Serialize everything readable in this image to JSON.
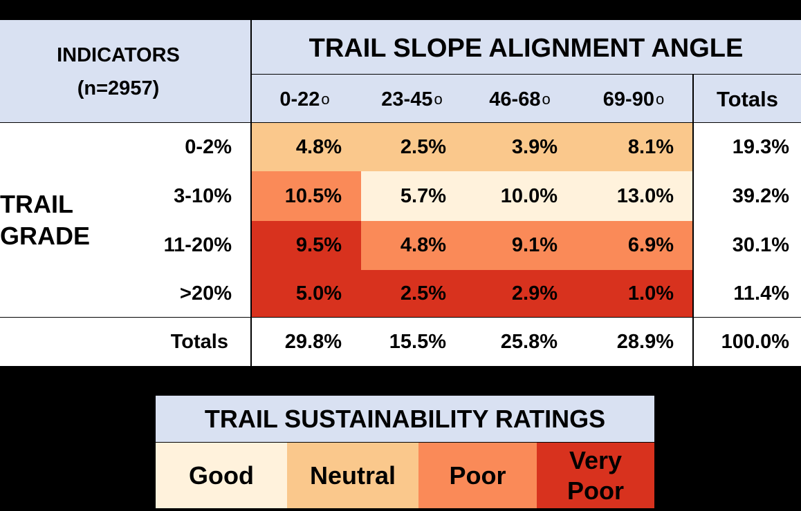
{
  "chart_data": {
    "type": "table",
    "indicators_label": "INDICATORS",
    "n_label": "(n=2957)",
    "column_group_title": "TRAIL SLOPE ALIGNMENT ANGLE",
    "row_group_title": [
      "TRAIL",
      "GRADE"
    ],
    "columns": [
      "0-22",
      "23-45",
      "46-68",
      "69-90"
    ],
    "degree_symbol": "o",
    "totals_label": "Totals",
    "rows": [
      {
        "label": "0-2%",
        "values": [
          "4.8%",
          "2.5%",
          "3.9%",
          "8.1%"
        ],
        "ratings": [
          "Neutral",
          "Neutral",
          "Neutral",
          "Neutral"
        ],
        "total": "19.3%"
      },
      {
        "label": "3-10%",
        "values": [
          "10.5%",
          "5.7%",
          "10.0%",
          "13.0%"
        ],
        "ratings": [
          "Poor",
          "Good",
          "Good",
          "Good"
        ],
        "total": "39.2%"
      },
      {
        "label": "11-20%",
        "values": [
          "9.5%",
          "4.8%",
          "9.1%",
          "6.9%"
        ],
        "ratings": [
          "Very Poor",
          "Poor",
          "Poor",
          "Poor"
        ],
        "total": "30.1%"
      },
      {
        "label": ">20%",
        "values": [
          "5.0%",
          "2.5%",
          "2.9%",
          "1.0%"
        ],
        "ratings": [
          "Very Poor",
          "Very Poor",
          "Very Poor",
          "Very Poor"
        ],
        "total": "11.4%"
      }
    ],
    "column_totals": [
      "29.8%",
      "15.5%",
      "25.8%",
      "28.9%"
    ],
    "grand_total": "100.0%"
  },
  "legend": {
    "title": "TRAIL SUSTAINABILITY RATINGS",
    "items": [
      {
        "rating": "Good",
        "lines": [
          "Good"
        ],
        "color": "#FFF2DC"
      },
      {
        "rating": "Neutral",
        "lines": [
          "Neutral"
        ],
        "color": "#FAC88C"
      },
      {
        "rating": "Poor",
        "lines": [
          "Poor"
        ],
        "color": "#FA8A58"
      },
      {
        "rating": "Very Poor",
        "lines": [
          "Very",
          "Poor"
        ],
        "color": "#D8321E"
      }
    ]
  },
  "colors": {
    "header_bg": "#D9E1F2",
    "body_bg": "#FFFFFF",
    "page_bg": "#000000"
  }
}
